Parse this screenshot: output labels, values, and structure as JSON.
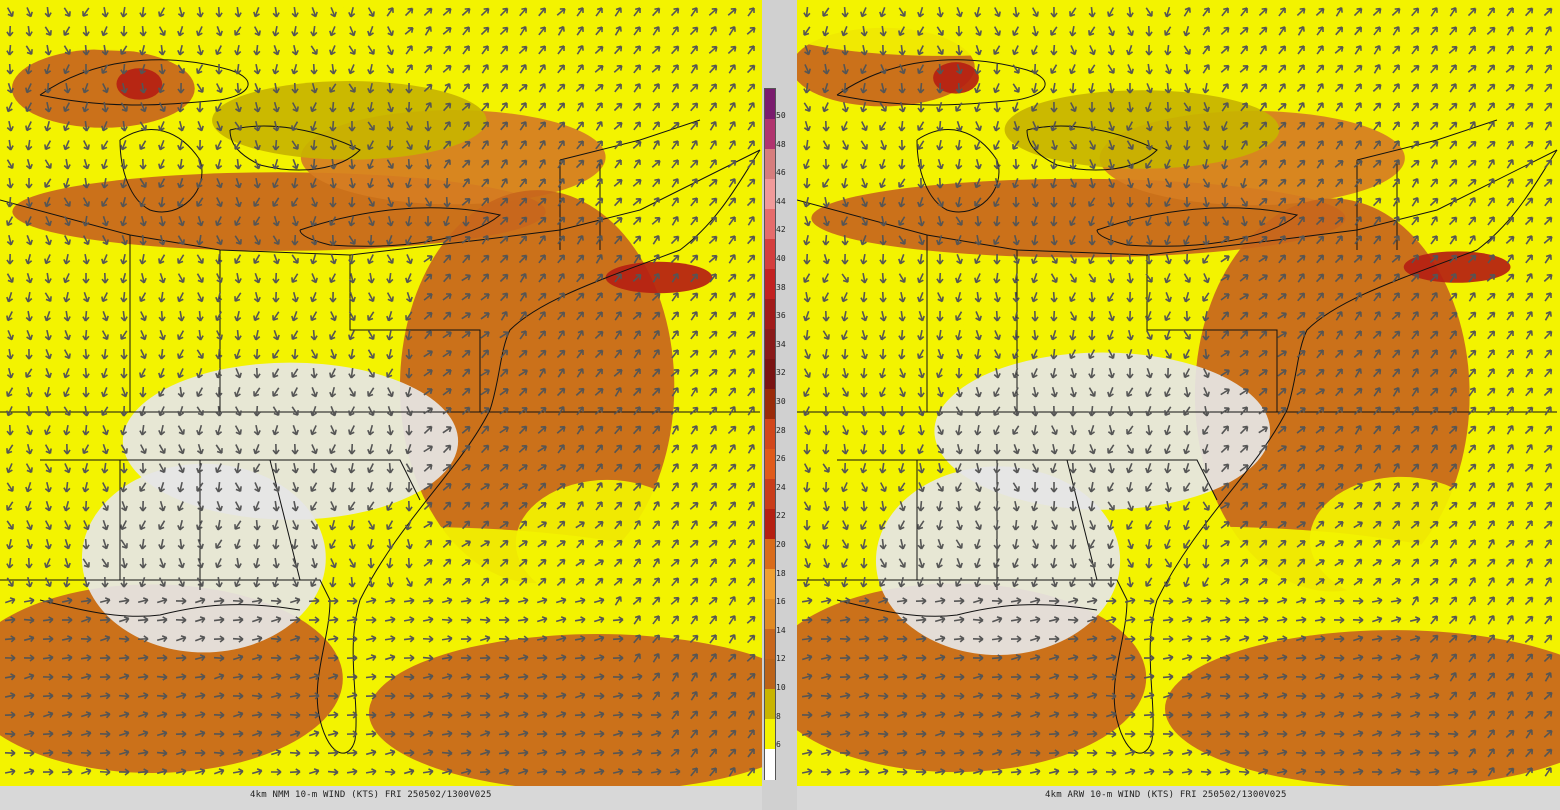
{
  "colors": {
    "background": "#e6e6e6",
    "map_lines": "#111111",
    "arrows": "#555555"
  },
  "icons": {
    "wind_arrow": "arrow-icon"
  },
  "panels": [
    {
      "id": "left",
      "model": "NMM",
      "caption": "4km NMM 10-m WIND (KTS)  FRI  250502/1300V025"
    },
    {
      "id": "right",
      "model": "ARW",
      "caption": "4km ARW 10-m WIND (KTS)  FRI  250502/1300V025"
    }
  ],
  "colorbar": {
    "ticks": [
      "50",
      "48",
      "46",
      "44",
      "42",
      "40",
      "38",
      "36",
      "34",
      "32",
      "30",
      "28",
      "26",
      "24",
      "22",
      "20",
      "18",
      "16",
      "14",
      "12",
      "10",
      "8",
      "6"
    ],
    "colors": [
      "#7a1b6e",
      "#b0336f",
      "#d67d7d",
      "#f09a9a",
      "#e56b6b",
      "#d43e3e",
      "#c22121",
      "#a11a1a",
      "#8a1a1a",
      "#7a1313",
      "#9a2b0a",
      "#d2471c",
      "#e05a1a",
      "#c93c1a",
      "#b51f12",
      "#d96b1a",
      "#f0a030",
      "#e08a24",
      "#c8661c",
      "#bc6318",
      "#c8b400",
      "#f3f300",
      "#ffffff"
    ]
  }
}
